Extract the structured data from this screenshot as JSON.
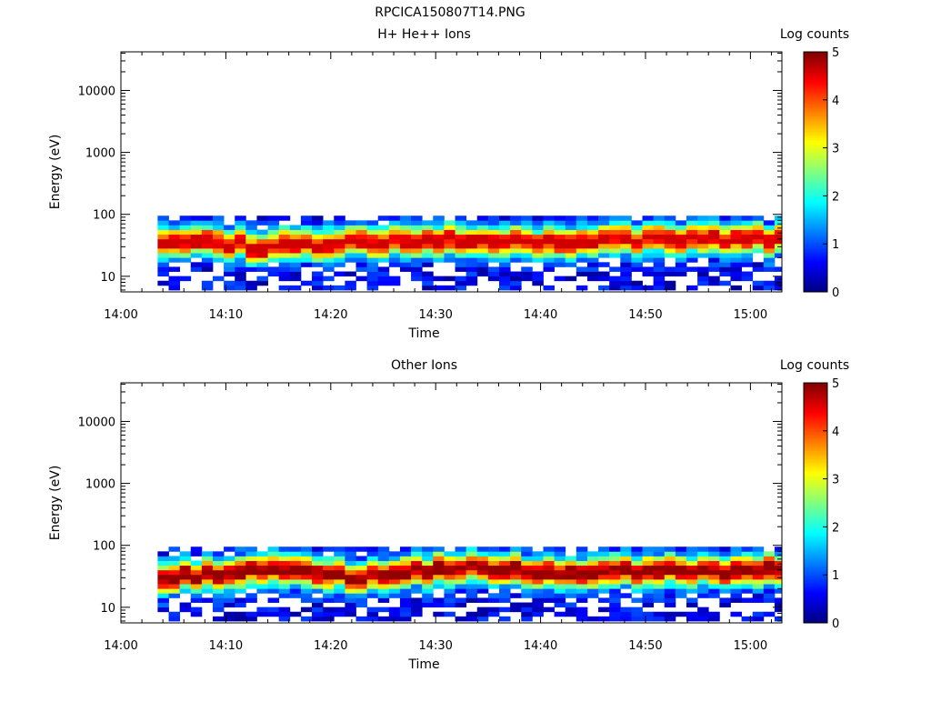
{
  "figure": {
    "title": "RPCICA150807T14.PNG"
  },
  "chart_data": [
    {
      "type": "heatmap",
      "title": "H+ He++ Ions",
      "xlabel": "Time",
      "ylabel": "Energy (eV)",
      "xticks": [
        "14:00",
        "14:10",
        "14:20",
        "14:30",
        "14:40",
        "14:50",
        "15:00"
      ],
      "xlim": [
        "14:00",
        "15:03"
      ],
      "yscale": "log",
      "yticks": [
        10,
        100,
        1000,
        10000
      ],
      "ylim": [
        5.6,
        42000
      ],
      "colorbar": {
        "label": "Log counts",
        "ticks": [
          0,
          1,
          2,
          3,
          4,
          5
        ],
        "range": [
          0,
          5
        ],
        "colormap": "jet"
      },
      "data_time_range": [
        "14:03:30",
        "15:03"
      ],
      "data_energy_range_eV": [
        6,
        95
      ],
      "peak_energy_eV": {
        "times": [
          "14:04",
          "14:14",
          "14:23",
          "14:32",
          "14:42",
          "14:52",
          "15:02"
        ],
        "values": [
          40,
          30,
          35,
          40,
          35,
          40,
          40
        ]
      },
      "peak_log_counts": 4.3
    },
    {
      "type": "heatmap",
      "title": "Other Ions",
      "xlabel": "Time",
      "ylabel": "Energy (eV)",
      "xticks": [
        "14:00",
        "14:10",
        "14:20",
        "14:30",
        "14:40",
        "14:50",
        "15:00"
      ],
      "xlim": [
        "14:00",
        "15:03"
      ],
      "yscale": "log",
      "yticks": [
        10,
        100,
        1000,
        10000
      ],
      "ylim": [
        5.6,
        42000
      ],
      "colorbar": {
        "label": "Log counts",
        "ticks": [
          0,
          1,
          2,
          3,
          4,
          5
        ],
        "range": [
          0,
          5
        ],
        "colormap": "jet"
      },
      "data_time_range": [
        "14:03:30",
        "15:03"
      ],
      "data_energy_range_eV": [
        6,
        95
      ],
      "peak_energy_eV": {
        "times": [
          "14:04",
          "14:14",
          "14:23",
          "14:32",
          "14:42",
          "14:52",
          "15:02"
        ],
        "values": [
          30,
          40,
          30,
          45,
          35,
          40,
          40
        ]
      },
      "peak_log_counts": 4.6
    }
  ]
}
